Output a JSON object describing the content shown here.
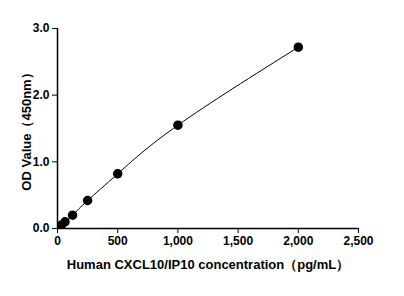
{
  "chart_data": {
    "type": "line",
    "x_label": "Human CXCL10/IP10 concentration（pg/mL）",
    "y_label": "OD Value（450nm）",
    "x": [
      0,
      31.25,
      62.5,
      125,
      250,
      500,
      1000,
      2000
    ],
    "values": [
      0.0,
      0.05,
      0.1,
      0.2,
      0.42,
      0.82,
      1.55,
      2.72
    ],
    "color": "#000000",
    "marker": "circle",
    "xlim": [
      0,
      2500
    ],
    "xticks": [
      0,
      500,
      1000,
      1500,
      2000,
      2500
    ],
    "ylim": [
      0,
      3
    ],
    "yticks": [
      0,
      1,
      2,
      3
    ],
    "grid": false
  }
}
